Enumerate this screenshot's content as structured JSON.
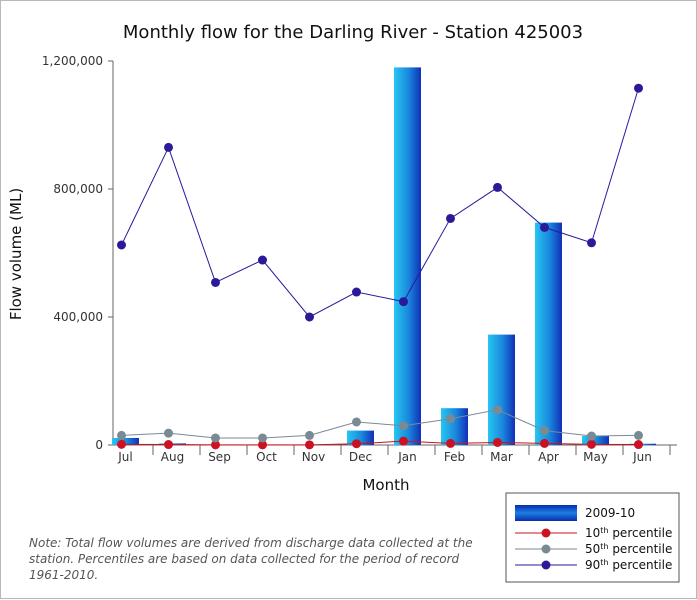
{
  "chart_data": {
    "type": "bar",
    "title": "Monthly flow for the Darling River - Station 425003",
    "xlabel": "Month",
    "ylabel": "Flow volume (ML)",
    "ylim": [
      0,
      1200000
    ],
    "yticks": [
      {
        "value": 0,
        "label": "0"
      },
      {
        "value": 400000,
        "label": "400,000"
      },
      {
        "value": 800000,
        "label": "800,000"
      },
      {
        "value": 1200000,
        "label": "1,200,000"
      }
    ],
    "categories": [
      "Jul",
      "Aug",
      "Sep",
      "Oct",
      "Nov",
      "Dec",
      "Jan",
      "Feb",
      "Mar",
      "Apr",
      "May",
      "Jun"
    ],
    "series": [
      {
        "name": "2009-10",
        "kind": "bar",
        "color": "#1a7fd9",
        "values": [
          22000,
          5000,
          1000,
          1000,
          1000,
          45000,
          1180000,
          115000,
          345000,
          695000,
          28000,
          4000
        ]
      },
      {
        "name": "10th percentile",
        "kind": "line",
        "color": "#cc1122",
        "values": [
          2000,
          1500,
          500,
          500,
          500,
          4000,
          12000,
          5000,
          8000,
          5000,
          2000,
          1500
        ]
      },
      {
        "name": "50th percentile",
        "kind": "line",
        "color": "#7a8a94",
        "values": [
          30000,
          37000,
          22000,
          22000,
          30000,
          72000,
          60000,
          82000,
          110000,
          45000,
          28000,
          30000
        ]
      },
      {
        "name": "90th percentile",
        "kind": "line",
        "color": "#2a1a9a",
        "values": [
          625000,
          930000,
          508000,
          578000,
          400000,
          478000,
          448000,
          708000,
          805000,
          680000,
          632000,
          1115000
        ]
      }
    ],
    "legend": "bottom-right",
    "grid": false
  },
  "note": "Note: Total flow volumes are derived from discharge data collected at the station. Percentiles are based on data collected for the period of record 1961-2010."
}
